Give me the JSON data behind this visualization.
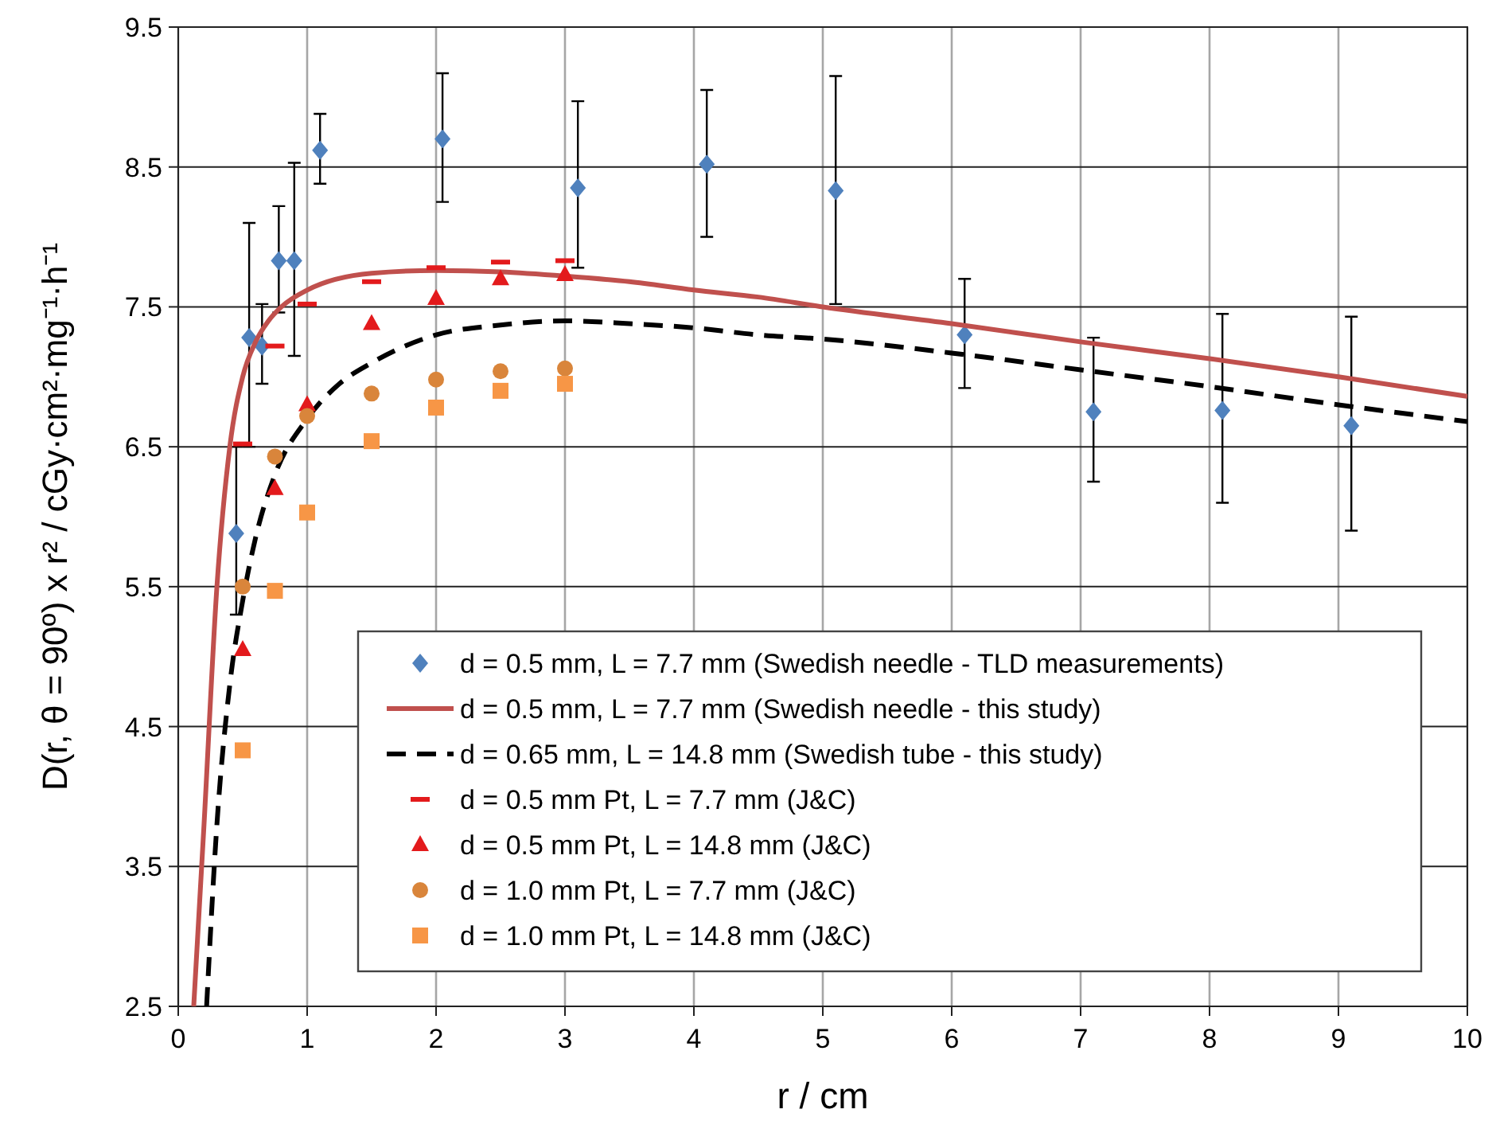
{
  "chart_data": {
    "type": "scatter",
    "xlabel": "r / cm",
    "ylabel": "D(r, θ = 90º) x r²  /  cGy·cm²·mg⁻¹·h⁻¹",
    "xlim": [
      0,
      10
    ],
    "ylim": [
      2.5,
      9.5
    ],
    "xticks": [
      0,
      1,
      2,
      3,
      4,
      5,
      6,
      7,
      8,
      9,
      10
    ],
    "yticks": [
      2.5,
      3.5,
      4.5,
      5.5,
      6.5,
      7.5,
      8.5,
      9.5
    ],
    "grid": true,
    "legend": "bottom right",
    "series": [
      {
        "name": "d = 0.5 mm, L = 7.7 mm (Swedish needle - TLD measurements)",
        "marker": "diamond",
        "color": "#4f81bd",
        "x": [
          0.45,
          0.55,
          0.65,
          0.78,
          0.9,
          1.1,
          2.05,
          3.1,
          4.1,
          5.1,
          6.1,
          7.1,
          8.1,
          9.1
        ],
        "values": [
          5.88,
          7.28,
          7.22,
          7.83,
          7.83,
          8.62,
          8.7,
          8.35,
          8.52,
          8.33,
          7.3,
          6.75,
          6.76,
          6.65
        ],
        "errors": [
          [
            5.3,
            6.5
          ],
          [
            6.5,
            8.1
          ],
          [
            6.95,
            7.52
          ],
          [
            7.46,
            8.22
          ],
          [
            7.15,
            8.53
          ],
          [
            8.38,
            8.88
          ],
          [
            8.25,
            9.17
          ],
          [
            7.78,
            8.97
          ],
          [
            8.0,
            9.05
          ],
          [
            7.52,
            9.15
          ],
          [
            6.92,
            7.7
          ],
          [
            6.25,
            7.28
          ],
          [
            6.1,
            7.45
          ],
          [
            5.9,
            7.43
          ]
        ]
      },
      {
        "name": "d = 0.5 mm, L = 7.7 mm (Swedish needle - this study)",
        "type": "line",
        "marker": "none",
        "line_style": "solid",
        "color": "#c0504d",
        "x": [
          0.12,
          0.2,
          0.3,
          0.4,
          0.5,
          0.6,
          0.7,
          0.8,
          1.0,
          1.5,
          2.0,
          2.5,
          3.0,
          3.5,
          4.0,
          4.5,
          5.0,
          6.0,
          7.0,
          8.0,
          9.0,
          10
        ],
        "values": [
          2.5,
          3.8,
          5.5,
          6.5,
          7.0,
          7.25,
          7.4,
          7.5,
          7.62,
          7.74,
          7.76,
          7.75,
          7.72,
          7.68,
          7.62,
          7.57,
          7.5,
          7.38,
          7.25,
          7.13,
          7.0,
          6.86
        ]
      },
      {
        "name": "d = 0.65 mm, L = 14.8 mm (Swedish tube - this study)",
        "type": "line",
        "marker": "none",
        "line_style": "dashed",
        "color": "#000000",
        "x": [
          0.22,
          0.3,
          0.4,
          0.5,
          0.6,
          0.75,
          1.0,
          1.25,
          1.5,
          2.0,
          2.5,
          3.0,
          3.5,
          4.0,
          4.5,
          5.0,
          6.0,
          7.0,
          8.0,
          9.0,
          10
        ],
        "values": [
          2.5,
          3.8,
          4.8,
          5.4,
          5.85,
          6.3,
          6.7,
          6.95,
          7.1,
          7.3,
          7.37,
          7.4,
          7.38,
          7.35,
          7.3,
          7.27,
          7.17,
          7.05,
          6.93,
          6.8,
          6.68
        ]
      },
      {
        "name": "d = 0.5 mm Pt, L = 7.7 mm (J&C)",
        "color": "#e31a1c",
        "x": [
          0.5,
          0.75,
          1.0,
          1.5,
          2.0,
          2.5,
          3.0
        ],
        "values": [
          6.52,
          7.22,
          7.52,
          7.68,
          7.78,
          7.82,
          7.83
        ]
      },
      {
        "name": "d = 0.5 mm Pt, L = 14.8 mm (J&C)",
        "marker": "triangle",
        "color": "#e31a1c",
        "x": [
          0.5,
          0.75,
          1.0,
          1.5,
          2.0,
          2.5,
          3.0
        ],
        "values": [
          5.05,
          6.2,
          6.8,
          7.38,
          7.56,
          7.7,
          7.73
        ]
      },
      {
        "name": "d = 1.0 mm Pt, L = 7.7 mm (J&C)",
        "marker": "circle",
        "color": "#d9853b",
        "x": [
          0.5,
          0.75,
          1.0,
          1.5,
          2.0,
          2.5,
          3.0
        ],
        "values": [
          5.5,
          6.43,
          6.72,
          6.88,
          6.98,
          7.04,
          7.06
        ]
      },
      {
        "name": "d = 1.0 mm Pt, L = 14.8 mm (J&C)",
        "marker": "square",
        "color": "#f79646",
        "x": [
          0.5,
          0.75,
          1.0,
          1.5,
          2.0,
          2.5,
          3.0
        ],
        "values": [
          4.33,
          5.47,
          6.03,
          6.54,
          6.78,
          6.9,
          6.95
        ]
      }
    ]
  }
}
